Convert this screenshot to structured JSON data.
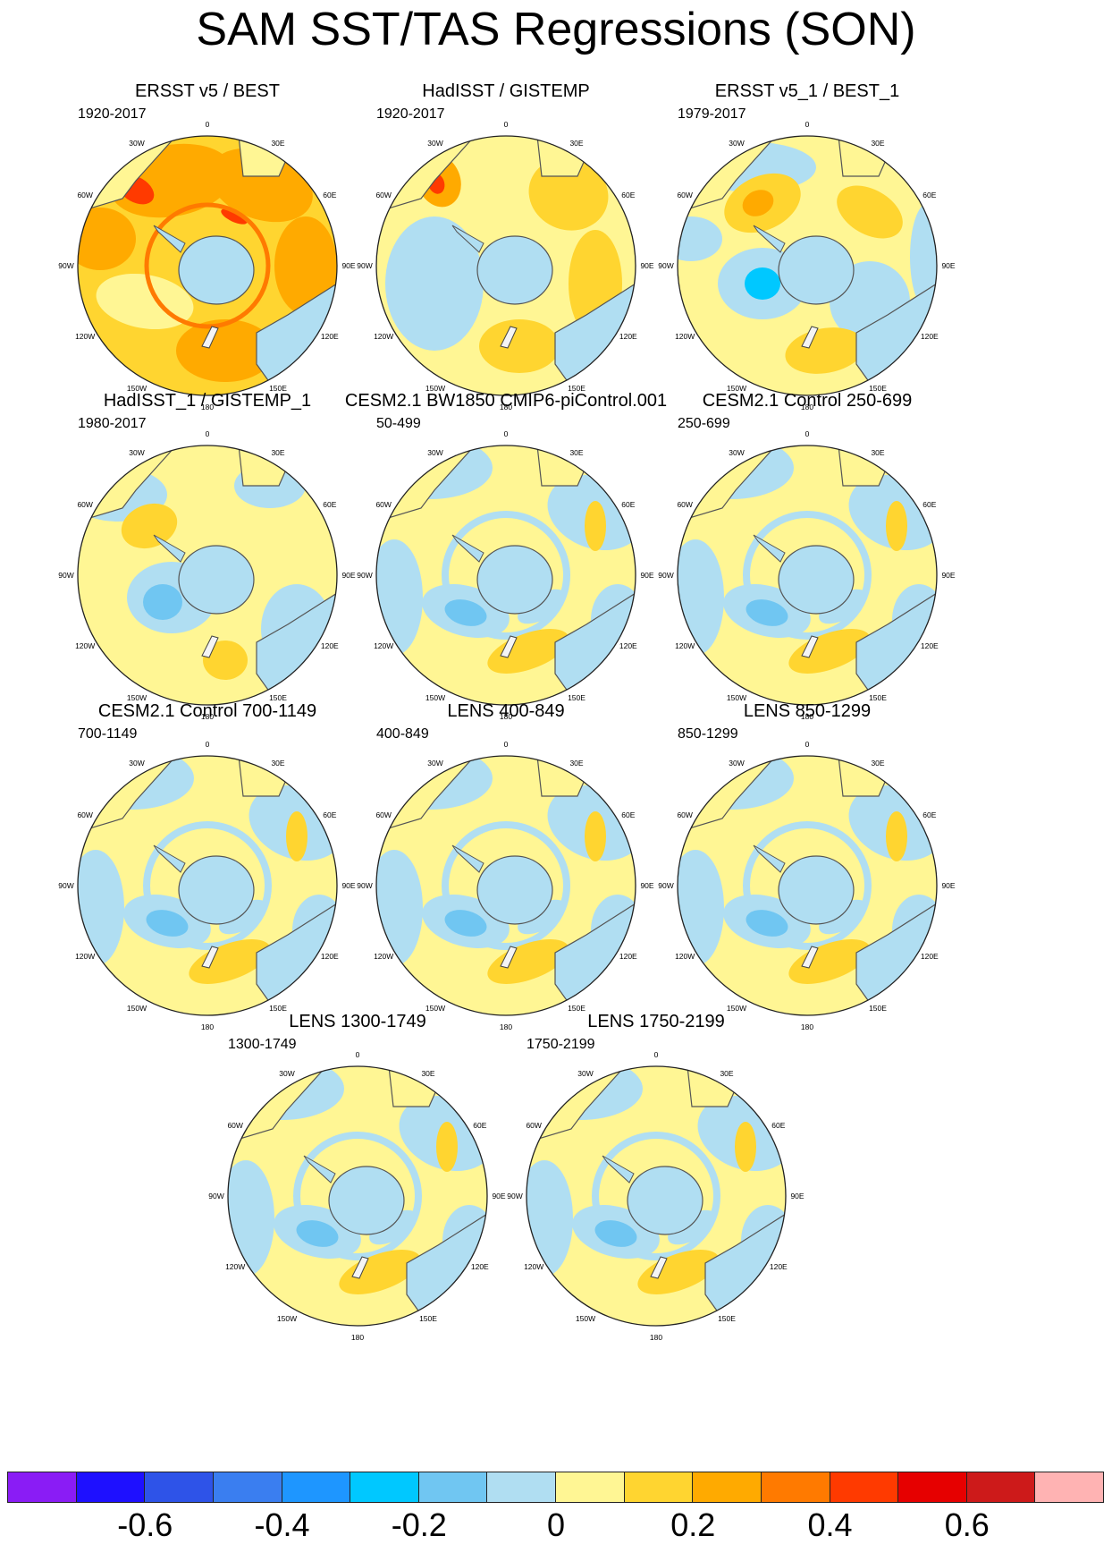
{
  "title": "SAM SST/TAS Regressions (SON)",
  "panels": [
    {
      "title": "ERSST v5 / BEST",
      "period": "1920-2017",
      "style": "warm"
    },
    {
      "title": "HadISST / GISTEMP",
      "period": "1920-2017",
      "style": "mixed"
    },
    {
      "title": "ERSST v5_1 / BEST_1",
      "period": "1979-2017",
      "style": "cool"
    },
    {
      "title": "HadISST_1 / GISTEMP_1",
      "period": "1980-2017",
      "style": "noisy"
    },
    {
      "title": "CESM2.1 BW1850 CMIP6-piControl.001",
      "period": "50-499",
      "style": "model"
    },
    {
      "title": "CESM2.1 Control 250-699",
      "period": "250-699",
      "style": "model"
    },
    {
      "title": "CESM2.1 Control 700-1149",
      "period": "700-1149",
      "style": "model"
    },
    {
      "title": "LENS 400-849",
      "period": "400-849",
      "style": "model"
    },
    {
      "title": "LENS 850-1299",
      "period": "850-1299",
      "style": "model"
    },
    {
      "title": "LENS 1300-1749",
      "period": "1300-1749",
      "style": "model"
    },
    {
      "title": "LENS 1750-2199",
      "period": "1750-2199",
      "style": "model"
    }
  ],
  "longitude_labels": [
    "0",
    "30E",
    "60E",
    "90E",
    "120E",
    "150E",
    "180",
    "150W",
    "120W",
    "90W",
    "60W",
    "30W"
  ],
  "colorbar": {
    "colors": [
      "#8a1cf5",
      "#1e10ff",
      "#2e53e8",
      "#3a7ef0",
      "#1e96ff",
      "#00c8ff",
      "#70c6f2",
      "#b0def2",
      "#fff694",
      "#ffd530",
      "#ffaa00",
      "#ff7a00",
      "#ff3a00",
      "#e60000",
      "#cd1a1a",
      "#ffb3b3"
    ],
    "labels": [
      "-0.6",
      "-0.4",
      "-0.2",
      "0",
      "0.2",
      "0.4",
      "0.6"
    ]
  }
}
